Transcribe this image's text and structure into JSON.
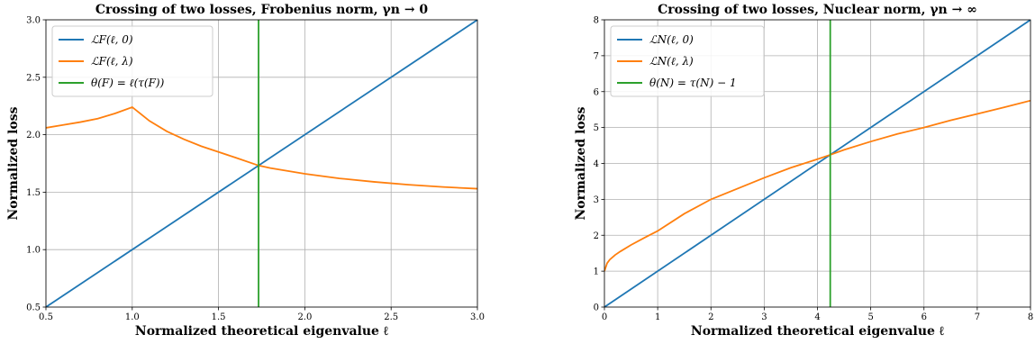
{
  "chart_data": [
    {
      "type": "line",
      "title": "Crossing of two losses, Frobenius norm, γn → 0",
      "xlabel": "Normalized theoretical eigenvalue ℓ",
      "ylabel": "Normalized loss",
      "xlim": [
        0.5,
        3.0
      ],
      "ylim": [
        0.5,
        3.0
      ],
      "xticks": [
        "0.5",
        "1.0",
        "1.5",
        "2.0",
        "2.5",
        "3.0"
      ],
      "yticks": [
        "0.5",
        "1.0",
        "1.5",
        "2.0",
        "2.5",
        "3.0"
      ],
      "grid": true,
      "legend_position": "top-left",
      "series": [
        {
          "name": "ℒF(ℓ, 0)",
          "color": "#1f77b4",
          "x": [
            0.5,
            3.0
          ],
          "y": [
            0.5,
            3.0
          ]
        },
        {
          "name": "ℒF(ℓ, λ)",
          "color": "#ff7f0e",
          "x": [
            0.5,
            0.6,
            0.7,
            0.8,
            0.9,
            1.0,
            1.1,
            1.2,
            1.3,
            1.4,
            1.5,
            1.6,
            1.732,
            1.8,
            2.0,
            2.2,
            2.4,
            2.6,
            2.8,
            3.0
          ],
          "y": [
            2.06,
            2.085,
            2.11,
            2.14,
            2.185,
            2.24,
            2.12,
            2.03,
            1.96,
            1.9,
            1.85,
            1.8,
            1.732,
            1.71,
            1.66,
            1.62,
            1.59,
            1.565,
            1.545,
            1.53
          ]
        },
        {
          "name": "θ(F) = ℓ(τ(F))",
          "color": "#2ca02c",
          "x": [
            1.732,
            1.732
          ],
          "y": [
            0.5,
            3.0
          ]
        }
      ]
    },
    {
      "type": "line",
      "title": "Crossing of two losses, Nuclear norm, γn → ∞",
      "xlabel": "Normalized theoretical eigenvalue ℓ",
      "ylabel": "Normalized loss",
      "xlim": [
        0,
        8
      ],
      "ylim": [
        0,
        8
      ],
      "xticks": [
        "0",
        "1",
        "2",
        "3",
        "4",
        "5",
        "6",
        "7",
        "8"
      ],
      "yticks": [
        "0",
        "1",
        "2",
        "3",
        "4",
        "5",
        "6",
        "7",
        "8"
      ],
      "grid": true,
      "legend_position": "top-left",
      "series": [
        {
          "name": "ℒN(ℓ, 0)",
          "color": "#1f77b4",
          "x": [
            0,
            8
          ],
          "y": [
            0,
            8
          ]
        },
        {
          "name": "ℒN(ℓ, λ)",
          "color": "#ff7f0e",
          "x": [
            0,
            0.05,
            0.1,
            0.2,
            0.3,
            0.5,
            0.75,
            1,
            1.5,
            2,
            2.5,
            3,
            3.5,
            4,
            4.24,
            4.5,
            5,
            5.5,
            6,
            6.5,
            7,
            7.5,
            8
          ],
          "y": [
            1.0,
            1.22,
            1.32,
            1.45,
            1.55,
            1.73,
            1.93,
            2.12,
            2.6,
            3.0,
            3.3,
            3.6,
            3.88,
            4.12,
            4.24,
            4.38,
            4.61,
            4.82,
            5.0,
            5.2,
            5.38,
            5.56,
            5.75
          ]
        },
        {
          "name": "θ(N) = τ(N) − 1",
          "color": "#2ca02c",
          "x": [
            4.24,
            4.24
          ],
          "y": [
            0,
            8
          ]
        }
      ]
    }
  ]
}
